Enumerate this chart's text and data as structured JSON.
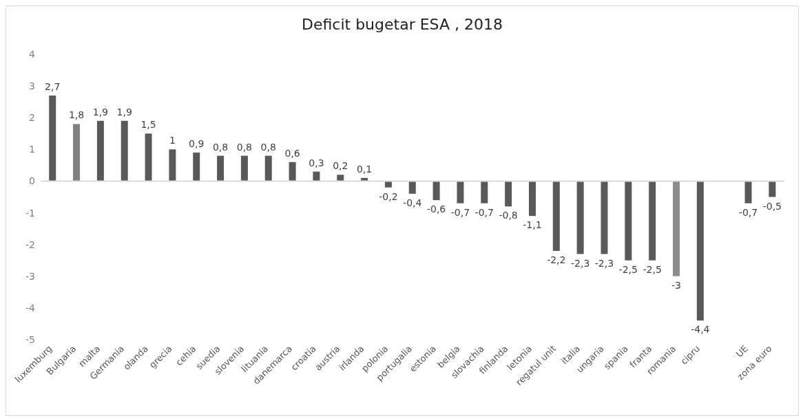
{
  "chart_data": {
    "type": "bar",
    "title": "Deficit bugetar ESA , 2018",
    "categories": [
      "luxemburg",
      "Bulgaria",
      "malta",
      "Germania",
      "olanda",
      "grecia",
      "cehia",
      "suedia",
      "slovenia",
      "lituania",
      "danemarca",
      "croatia",
      "austria",
      "irlanda",
      "polonia",
      "portugalia",
      "estonia",
      "belgia",
      "slovachia",
      "finlanda",
      "letonia",
      "regatul unit",
      "italia",
      "ungaria",
      "spania",
      "franta",
      "romania",
      "cipru",
      null,
      "UE",
      "zona euro"
    ],
    "values": [
      2.7,
      1.8,
      1.9,
      1.9,
      1.5,
      1,
      0.9,
      0.8,
      0.8,
      0.8,
      0.6,
      0.3,
      0.2,
      0.1,
      -0.2,
      -0.4,
      -0.6,
      -0.7,
      -0.7,
      -0.8,
      -1.1,
      -2.2,
      -2.3,
      -2.3,
      -2.5,
      -2.5,
      -3,
      -4.4,
      null,
      -0.7,
      -0.5
    ],
    "colors": [
      "#595959",
      "#808080",
      "#595959",
      "#595959",
      "#595959",
      "#595959",
      "#595959",
      "#595959",
      "#595959",
      "#595959",
      "#595959",
      "#595959",
      "#595959",
      "#595959",
      "#595959",
      "#595959",
      "#595959",
      "#595959",
      "#595959",
      "#595959",
      "#595959",
      "#595959",
      "#595959",
      "#595959",
      "#595959",
      "#595959",
      "#8c8c8c",
      "#595959",
      "#595959",
      "#595959",
      "#595959"
    ],
    "value_labels": [
      "2,7",
      "1,8",
      "1,9",
      "1,9",
      "1,5",
      "1",
      "0,9",
      "0,8",
      "0,8",
      "0,8",
      "0,6",
      "0,3",
      "0,2",
      "0,1",
      "-0,2",
      "-0,4",
      "-0,6",
      "-0,7",
      "-0,7",
      "-0,8",
      "-1,1",
      "-2,2",
      "-2,3",
      "-2,3",
      "-2,5",
      "-2,5",
      "-3",
      "-4,4",
      null,
      "-0,7",
      "-0,5"
    ],
    "ylim": [
      -5,
      4
    ],
    "yticks": [
      -5,
      -4,
      -3,
      -2,
      -1,
      0,
      1,
      2,
      3,
      4
    ]
  }
}
